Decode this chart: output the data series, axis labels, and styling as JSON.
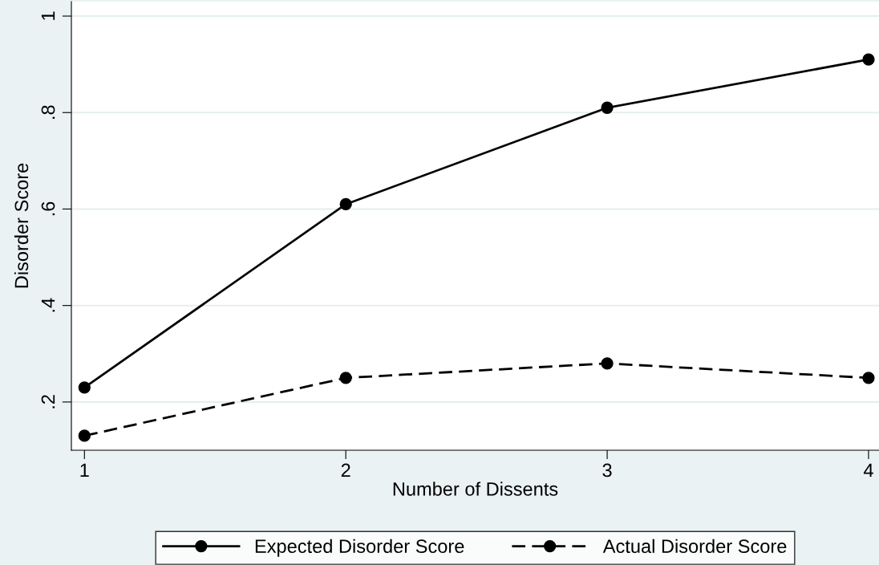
{
  "chart_data": {
    "type": "line",
    "xlabel": "Number of Dissents",
    "ylabel": "Disorder Score",
    "x": [
      1,
      2,
      3,
      4
    ],
    "series": [
      {
        "name": "Expected Disorder Score",
        "color": "#000000",
        "values": [
          0.23,
          0.61,
          0.81,
          0.91
        ],
        "line_style": "solid"
      },
      {
        "name": "Actual Disorder Score",
        "color": "#000000",
        "values": [
          0.13,
          0.25,
          0.28,
          0.25
        ],
        "line_style": "dashed"
      }
    ],
    "xlim": [
      0.95,
      4.04
    ],
    "xticks": [
      1,
      2,
      3,
      4
    ],
    "ylim": [
      0.1,
      1.03
    ],
    "yticks": [
      {
        "value": 0.2,
        "label": ".2"
      },
      {
        "value": 0.4,
        "label": ".4"
      },
      {
        "value": 0.6,
        "label": ".6"
      },
      {
        "value": 0.8,
        "label": ".8"
      },
      {
        "value": 1,
        "label": "1"
      }
    ],
    "grid": "y",
    "legend": "bottom",
    "marker": "circle"
  }
}
